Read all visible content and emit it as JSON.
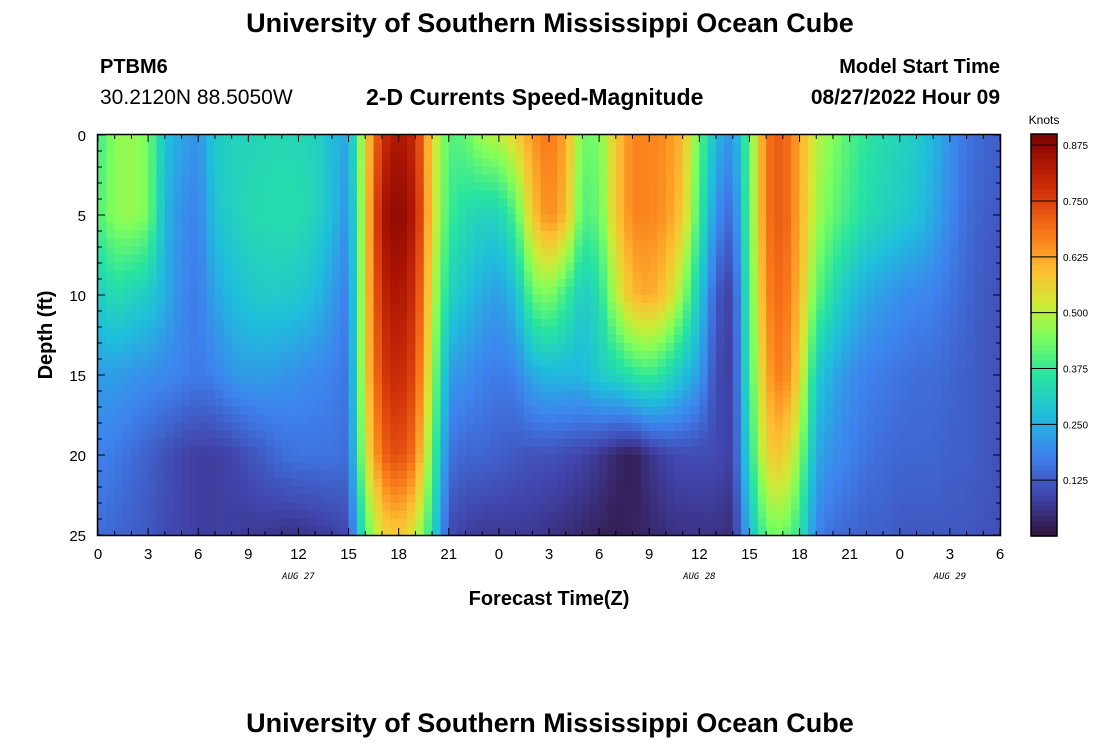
{
  "header": {
    "title": "University of Southern Mississippi Ocean Cube",
    "station_id": "PTBM6",
    "coordinates": "30.2120N  88.5050W",
    "subtitle": "2-D Currents Speed-Magnitude",
    "model_start_label": "Model Start Time",
    "model_start_value": "08/27/2022 Hour 09"
  },
  "footer": {
    "title": "University of Southern Mississippi Ocean Cube"
  },
  "chart_data": {
    "type": "heatmap",
    "xlabel": "Forecast Time(Z)",
    "ylabel": "Depth (ft)",
    "x_tick_labels": [
      "0",
      "3",
      "6",
      "9",
      "12",
      "15",
      "18",
      "21",
      "0",
      "3",
      "6",
      "9",
      "12",
      "15",
      "18",
      "21",
      "0",
      "3",
      "6"
    ],
    "x_range_hours": [
      0,
      54
    ],
    "date_labels": [
      {
        "label": "AUG 27",
        "hour": 12
      },
      {
        "label": "AUG 28",
        "hour": 36
      },
      {
        "label": "AUG 29",
        "hour": 51
      }
    ],
    "y_tick_labels": [
      "0",
      "5",
      "10",
      "15",
      "20",
      "25"
    ],
    "y_range_ft": [
      0,
      25
    ],
    "colorbar": {
      "title": "Knots",
      "ticks": [
        0.125,
        0.25,
        0.375,
        0.5,
        0.625,
        0.75,
        0.875
      ],
      "tick_labels": [
        "0.125",
        "0.250",
        "0.375",
        "0.500",
        "0.625",
        "0.750",
        "0.875"
      ],
      "min": 0.0,
      "max": 0.9
    },
    "speed_knots_by_depth": {
      "depths_ft": [
        0,
        5,
        10,
        15,
        20,
        25
      ],
      "hours": [
        0,
        1,
        2,
        3,
        4,
        5,
        6,
        7,
        8,
        9,
        10,
        11,
        12,
        13,
        14,
        15,
        16,
        17,
        18,
        19,
        20,
        21,
        22,
        23,
        24,
        25,
        26,
        27,
        28,
        29,
        30,
        31,
        32,
        33,
        34,
        35,
        36,
        37,
        38,
        39,
        40,
        41,
        42,
        43,
        44,
        45,
        46,
        47,
        48,
        49,
        50,
        51,
        52,
        53,
        54
      ],
      "rows": [
        [
          0.38,
          0.46,
          0.47,
          0.44,
          0.28,
          0.23,
          0.2,
          0.3,
          0.32,
          0.32,
          0.33,
          0.33,
          0.33,
          0.32,
          0.27,
          0.23,
          0.55,
          0.78,
          0.84,
          0.79,
          0.55,
          0.4,
          0.42,
          0.48,
          0.5,
          0.56,
          0.64,
          0.68,
          0.62,
          0.43,
          0.44,
          0.58,
          0.66,
          0.66,
          0.65,
          0.6,
          0.42,
          0.26,
          0.2,
          0.42,
          0.68,
          0.72,
          0.62,
          0.5,
          0.45,
          0.4,
          0.36,
          0.34,
          0.32,
          0.3,
          0.26,
          0.2,
          0.16,
          0.14,
          0.13
        ],
        [
          0.4,
          0.46,
          0.47,
          0.44,
          0.26,
          0.2,
          0.18,
          0.28,
          0.31,
          0.33,
          0.34,
          0.34,
          0.34,
          0.32,
          0.27,
          0.2,
          0.55,
          0.84,
          0.88,
          0.82,
          0.55,
          0.38,
          0.34,
          0.32,
          0.32,
          0.4,
          0.58,
          0.66,
          0.6,
          0.4,
          0.42,
          0.58,
          0.66,
          0.66,
          0.64,
          0.58,
          0.38,
          0.2,
          0.14,
          0.42,
          0.68,
          0.72,
          0.62,
          0.48,
          0.42,
          0.38,
          0.34,
          0.32,
          0.3,
          0.28,
          0.24,
          0.19,
          0.15,
          0.13,
          0.12
        ],
        [
          0.3,
          0.34,
          0.32,
          0.3,
          0.25,
          0.19,
          0.17,
          0.23,
          0.27,
          0.29,
          0.3,
          0.3,
          0.29,
          0.27,
          0.22,
          0.17,
          0.56,
          0.8,
          0.84,
          0.78,
          0.52,
          0.32,
          0.28,
          0.24,
          0.22,
          0.27,
          0.42,
          0.45,
          0.38,
          0.3,
          0.34,
          0.5,
          0.6,
          0.62,
          0.58,
          0.46,
          0.3,
          0.12,
          0.08,
          0.4,
          0.66,
          0.7,
          0.6,
          0.42,
          0.34,
          0.28,
          0.24,
          0.22,
          0.2,
          0.19,
          0.18,
          0.16,
          0.14,
          0.12,
          0.11
        ],
        [
          0.22,
          0.22,
          0.21,
          0.2,
          0.19,
          0.18,
          0.17,
          0.18,
          0.21,
          0.22,
          0.22,
          0.21,
          0.2,
          0.19,
          0.18,
          0.16,
          0.56,
          0.76,
          0.8,
          0.74,
          0.48,
          0.22,
          0.2,
          0.18,
          0.17,
          0.18,
          0.24,
          0.26,
          0.26,
          0.26,
          0.3,
          0.32,
          0.36,
          0.38,
          0.34,
          0.28,
          0.22,
          0.1,
          0.08,
          0.38,
          0.62,
          0.68,
          0.56,
          0.3,
          0.24,
          0.2,
          0.18,
          0.17,
          0.16,
          0.15,
          0.15,
          0.14,
          0.13,
          0.12,
          0.11
        ],
        [
          0.18,
          0.17,
          0.15,
          0.13,
          0.11,
          0.09,
          0.08,
          0.08,
          0.09,
          0.11,
          0.13,
          0.15,
          0.16,
          0.16,
          0.16,
          0.15,
          0.52,
          0.7,
          0.74,
          0.68,
          0.42,
          0.16,
          0.14,
          0.14,
          0.13,
          0.12,
          0.11,
          0.11,
          0.1,
          0.09,
          0.07,
          0.04,
          0.02,
          0.06,
          0.09,
          0.1,
          0.1,
          0.1,
          0.08,
          0.34,
          0.56,
          0.58,
          0.46,
          0.24,
          0.2,
          0.18,
          0.16,
          0.15,
          0.14,
          0.14,
          0.14,
          0.13,
          0.13,
          0.12,
          0.11
        ],
        [
          0.15,
          0.14,
          0.13,
          0.12,
          0.1,
          0.09,
          0.08,
          0.08,
          0.08,
          0.07,
          0.07,
          0.06,
          0.06,
          0.07,
          0.08,
          0.1,
          0.4,
          0.55,
          0.58,
          0.52,
          0.34,
          0.1,
          0.08,
          0.07,
          0.07,
          0.07,
          0.07,
          0.06,
          0.05,
          0.04,
          0.03,
          0.02,
          0.03,
          0.04,
          0.05,
          0.06,
          0.06,
          0.06,
          0.05,
          0.26,
          0.42,
          0.44,
          0.36,
          0.18,
          0.15,
          0.14,
          0.13,
          0.13,
          0.12,
          0.12,
          0.12,
          0.12,
          0.12,
          0.11,
          0.11
        ]
      ]
    }
  }
}
